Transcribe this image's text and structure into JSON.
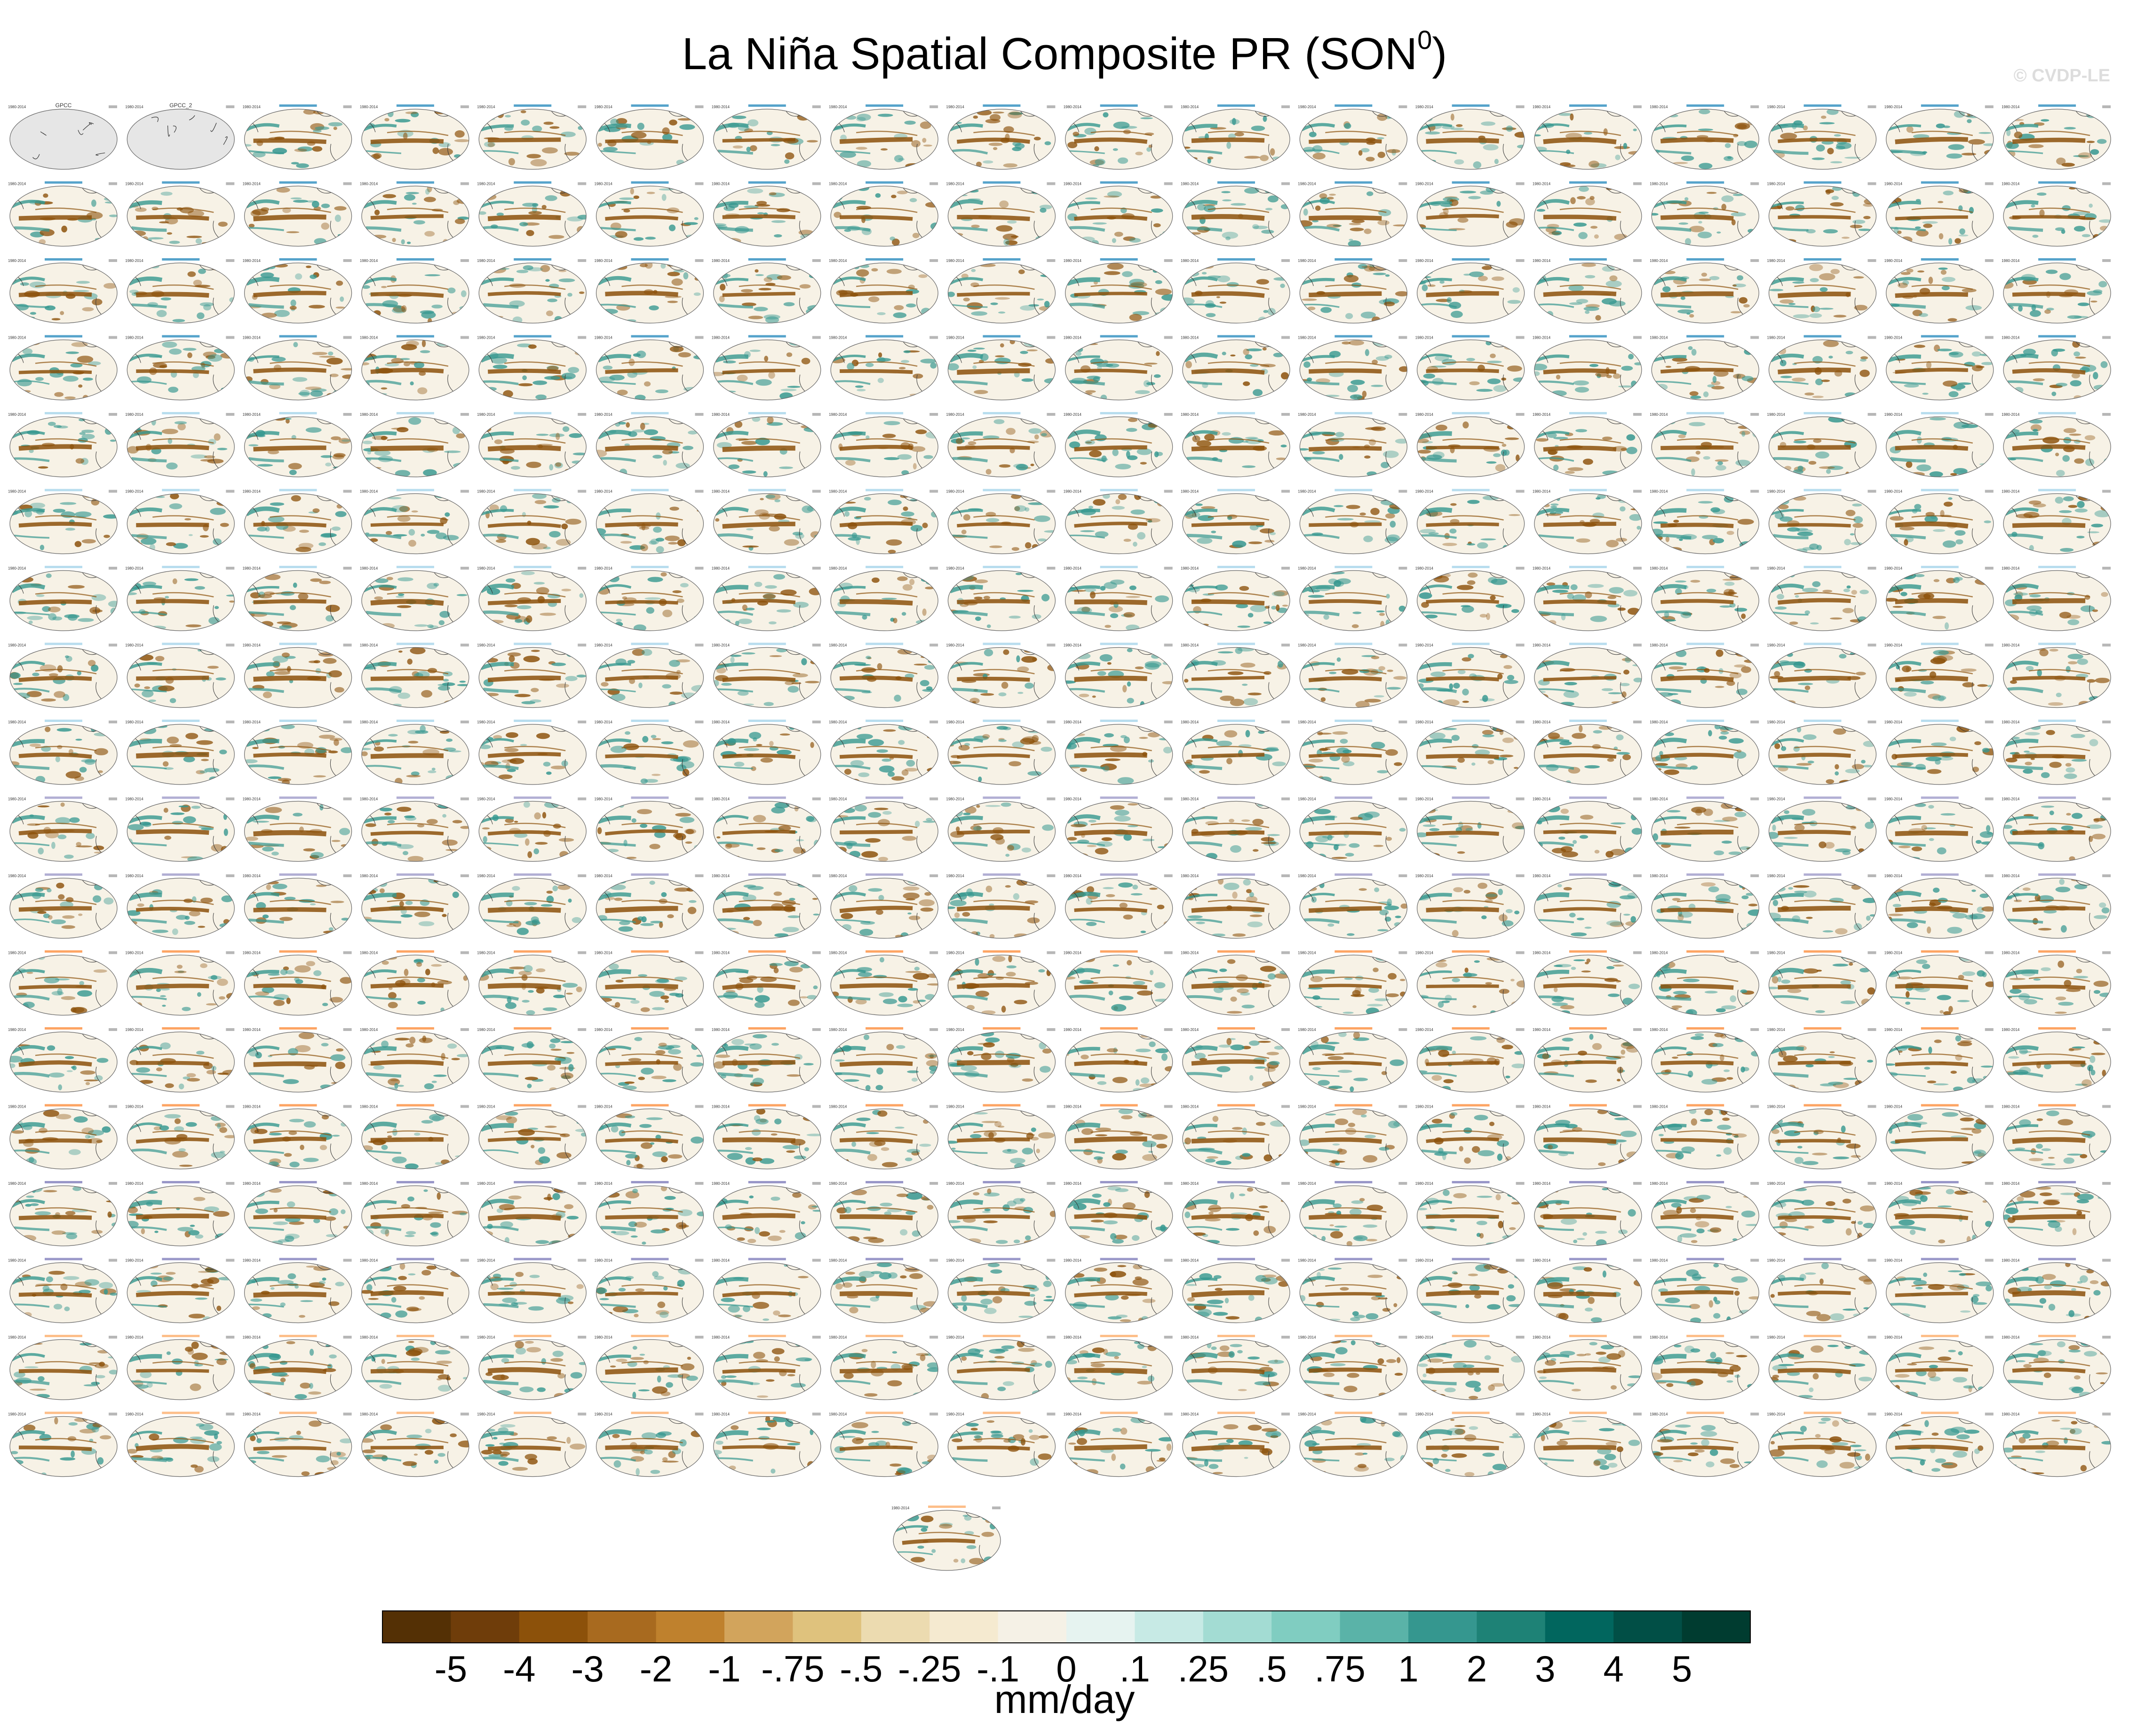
{
  "title_main": "La Niña Spatial Composite PR (SON",
  "title_sup": "0",
  "title_end": ")",
  "watermark": "© CVDP-LE",
  "chart_data": {
    "type": "heatmap",
    "panel_rows": 18,
    "panel_cols": 18,
    "extra_panels": 1,
    "observation_panels": [
      {
        "title": "GPCC",
        "period": "1980-2014",
        "value_text": "0.12"
      },
      {
        "title": "GPCC_2",
        "period": "1980-2014",
        "value_text": "0.12"
      }
    ],
    "panel_period": "1980-2014",
    "colorbar": {
      "levels": [
        "-5",
        "-4",
        "-3",
        "-2",
        "-1",
        "-.75",
        "-.5",
        "-.25",
        "-.1",
        "0",
        ".1",
        ".25",
        ".5",
        ".75",
        "1",
        "2",
        "3",
        "4",
        "5"
      ],
      "colors": [
        "#543005",
        "#6f3d0a",
        "#8c510a",
        "#a86a1f",
        "#bf812d",
        "#d2a45c",
        "#dfc27d",
        "#ecdbb0",
        "#f5ead0",
        "#f5f1e6",
        "#e6f3f0",
        "#c7eae5",
        "#a3dcd3",
        "#80cdc1",
        "#5ab3a8",
        "#35978f",
        "#1e8276",
        "#01665e",
        "#014f46",
        "#003c30"
      ],
      "units": "mm/day"
    },
    "colors": {
      "wet": "#35978f",
      "dry": "#8c510a",
      "land": "#e6e6e6",
      "coast": "#333333",
      "title_cesm": "#2b8cbe",
      "title_cesm_le": "#a6d4ea",
      "title_cmip": "#9e9ac8",
      "title_giss": "#fd8d3c",
      "title_ipsl": "#807dba",
      "title_mpi": "#fdae6b"
    }
  }
}
